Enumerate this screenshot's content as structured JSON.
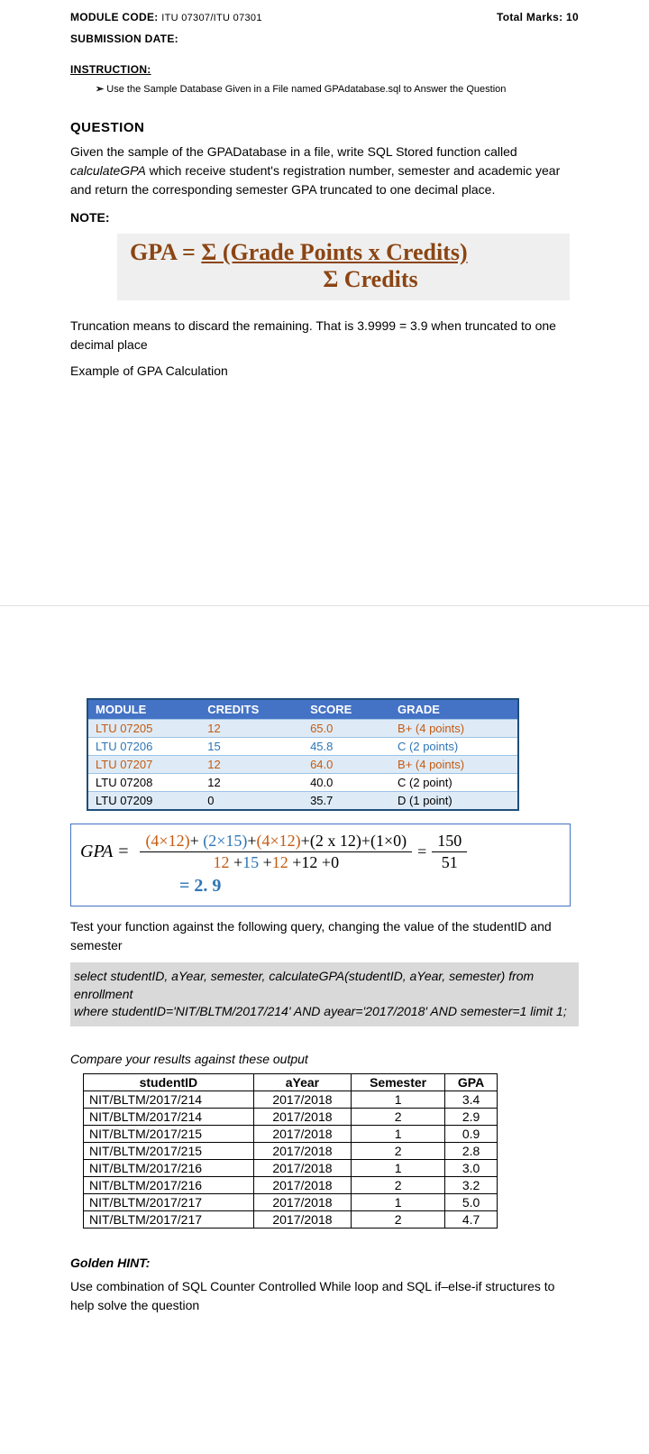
{
  "header": {
    "module_code_label": "MODULE CODE:",
    "module_code_value": "ITU 07307/ITU 07301",
    "total_marks": "Total Marks: 10",
    "submission_date_label": "SUBMISSION DATE:"
  },
  "instruction_label": "INSTRUCTION:",
  "instruction_text": "Use the Sample Database Given in a File named GPAdatabase.sql to Answer the Question",
  "question_label": "QUESTION",
  "question_text_1": "Given the sample of the GPADatabase in a file, write SQL Stored function called ",
  "question_text_func": "calculateGPA",
  "question_text_2": " which receive student's registration number, semester and academic year and return the corresponding semester GPA truncated to one decimal place.",
  "note_label": "NOTE:",
  "formula": {
    "lhs": "GPA = ",
    "numerator": "Σ (Grade Points  x  Credits)",
    "denominator": "Σ  Credits"
  },
  "truncation_text": "Truncation means to discard the remaining. That is 3.9999 = 3.9 when truncated to one decimal place",
  "example_label": "Example of GPA Calculation",
  "module_table": {
    "headers": [
      "MODULE",
      "CREDITS",
      "SCORE",
      "GRADE"
    ],
    "rows": [
      {
        "module": "LTU 07205",
        "credits": "12",
        "score": "65.0",
        "grade": "B+  (4 points)",
        "alt": true,
        "color": "orange"
      },
      {
        "module": "LTU 07206",
        "credits": "15",
        "score": "45.8",
        "grade": "C  (2 points)",
        "alt": false,
        "color": "blue"
      },
      {
        "module": "LTU 07207",
        "credits": "12",
        "score": "64.0",
        "grade": "B+  (4 points)",
        "alt": true,
        "color": "orange"
      },
      {
        "module": "LTU 07208",
        "credits": "12",
        "score": "40.0",
        "grade": "C (2 point)",
        "alt": false,
        "color": "none"
      },
      {
        "module": "LTU 07209",
        "credits": "0",
        "score": "35.7",
        "grade": "D  (1 point)",
        "alt": true,
        "color": "none"
      }
    ]
  },
  "gpa_calc": {
    "lhs": "GPA  =",
    "num": "(4×12)+ (2×15)+(4×12)+(2 x 12)+(1×0)",
    "den": "12 +15 +12 +12 +0",
    "eq2_num": "150",
    "eq2_den": "51",
    "result": "=  2. 9"
  },
  "test_text": "Test your function against the following query, changing the value of the studentID and semester",
  "sql_line1": "select studentID, aYear, semester, calculateGPA(studentID, aYear, semester) from enrollment",
  "sql_line2": "where studentID='NIT/BLTM/2017/214'  AND ayear='2017/2018' AND semester=1  limit 1;",
  "compare_label": "Compare your results against these output",
  "result_table": {
    "headers": [
      "studentID",
      "aYear",
      "Semester",
      "GPA"
    ],
    "rows": [
      [
        "NIT/BLTM/2017/214",
        "2017/2018",
        "1",
        "3.4"
      ],
      [
        "NIT/BLTM/2017/214",
        "2017/2018",
        "2",
        "2.9"
      ],
      [
        "NIT/BLTM/2017/215",
        "2017/2018",
        "1",
        "0.9"
      ],
      [
        "NIT/BLTM/2017/215",
        "2017/2018",
        "2",
        "2.8"
      ],
      [
        "NIT/BLTM/2017/216",
        "2017/2018",
        "1",
        "3.0"
      ],
      [
        "NIT/BLTM/2017/216",
        "2017/2018",
        "2",
        "3.2"
      ],
      [
        "NIT/BLTM/2017/217",
        "2017/2018",
        "1",
        "5.0"
      ],
      [
        "NIT/BLTM/2017/217",
        "2017/2018",
        "2",
        "4.7"
      ]
    ]
  },
  "hint_label": "Golden HINT:",
  "hint_text": "Use combination of SQL Counter Controlled While loop and SQL if–else-if structures to help solve the question"
}
